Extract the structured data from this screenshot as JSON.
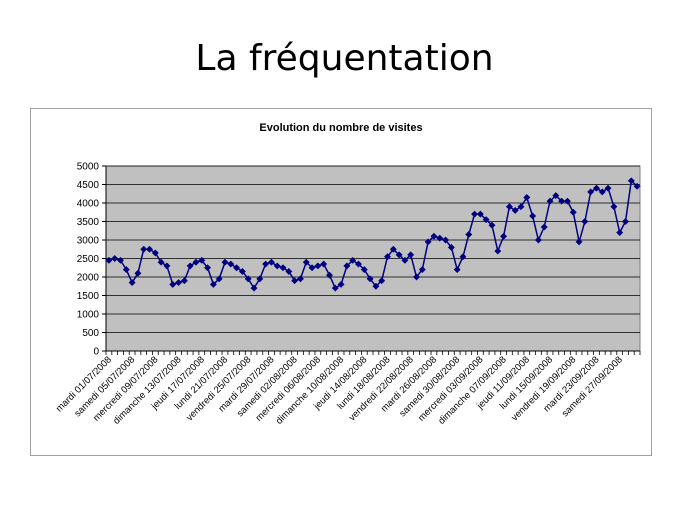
{
  "slide": {
    "title": "La fréquentation"
  },
  "colors": {
    "plot_background": "#c0c0c0",
    "series": "#000080",
    "gridline": "#000000"
  },
  "chart_data": {
    "type": "line",
    "title": "Evolution du nombre de visites",
    "xlabel": "",
    "ylabel": "",
    "ylim": [
      0,
      5000
    ],
    "yticks": [
      0,
      500,
      1000,
      1500,
      2000,
      2500,
      3000,
      3500,
      4000,
      4500,
      5000
    ],
    "grid": true,
    "legend": "none",
    "x_tick_labels": [
      "mardi 01/07/2008",
      "samedi 05/07/2008",
      "mercredi 09/07/2008",
      "dimanche 13/07/2008",
      "jeudi 17/07/2008",
      "lundi 21/07/2008",
      "vendredi 25/07/2008",
      "mardi 29/07/2008",
      "samedi 02/08/2008",
      "mercredi 06/08/2008",
      "dimanche 10/08/2008",
      "jeudi 14/08/2008",
      "lundi 18/08/2008",
      "vendredi 22/08/2008",
      "mardi 26/08/2008",
      "samedi 30/08/2008",
      "mercredi 03/09/2008",
      "dimanche 07/09/2008",
      "jeudi 11/09/2008",
      "lundi 15/09/2008",
      "vendredi 19/09/2008",
      "mardi 23/09/2008",
      "samedi 27/09/2008"
    ],
    "series": [
      {
        "values": [
          2450,
          2500,
          2450,
          2200,
          1850,
          2100,
          2750,
          2750,
          2650,
          2400,
          2300,
          1800,
          1850,
          1900,
          2300,
          2400,
          2450,
          2250,
          1800,
          1950,
          2400,
          2350,
          2250,
          2150,
          1950,
          1700,
          1950,
          2350,
          2400,
          2300,
          2250,
          2150,
          1900,
          1950,
          2400,
          2250,
          2300,
          2350,
          2050,
          1700,
          1800,
          2300,
          2450,
          2350,
          2200,
          1950,
          1750,
          1900,
          2550,
          2750,
          2600,
          2450,
          2600,
          2000,
          2200,
          2950,
          3100,
          3050,
          3000,
          2800,
          2200,
          2550,
          3150,
          3700,
          3700,
          3550,
          3400,
          2700,
          3100,
          3900,
          3800,
          3900,
          4150,
          3650,
          3000,
          3350,
          4050,
          4200,
          4050,
          4050,
          3750,
          2950,
          3500,
          4300,
          4400,
          4300,
          4400,
          3900,
          3200,
          3500,
          4600,
          4450
        ]
      }
    ]
  }
}
